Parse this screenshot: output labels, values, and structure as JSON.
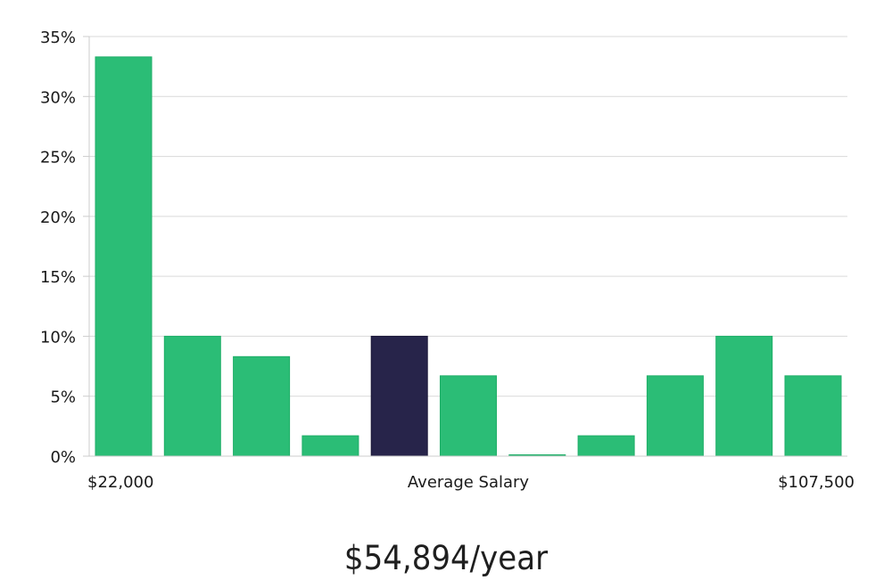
{
  "chart_data": {
    "type": "bar",
    "values": [
      33.3,
      10,
      8.3,
      1.7,
      10,
      6.7,
      0,
      1.7,
      6.7,
      10,
      6.7
    ],
    "highlight_index": 4,
    "ylim": [
      0,
      35
    ],
    "y_ticks": [
      "0%",
      "5%",
      "10%",
      "15%",
      "20%",
      "25%",
      "30%",
      "35%"
    ],
    "y_tick_values": [
      0,
      5,
      10,
      15,
      20,
      25,
      30,
      35
    ],
    "x_min_label": "$22,000",
    "x_center_label": "Average Salary",
    "x_max_label": "$107,500",
    "grid": true,
    "colors": {
      "bar": "#2bbd76",
      "bar_edge": "#1fae68",
      "highlight": "#27244a",
      "grid": "#d9d9d9",
      "axis": "#cccccc"
    }
  },
  "headline": "$54,894/year"
}
